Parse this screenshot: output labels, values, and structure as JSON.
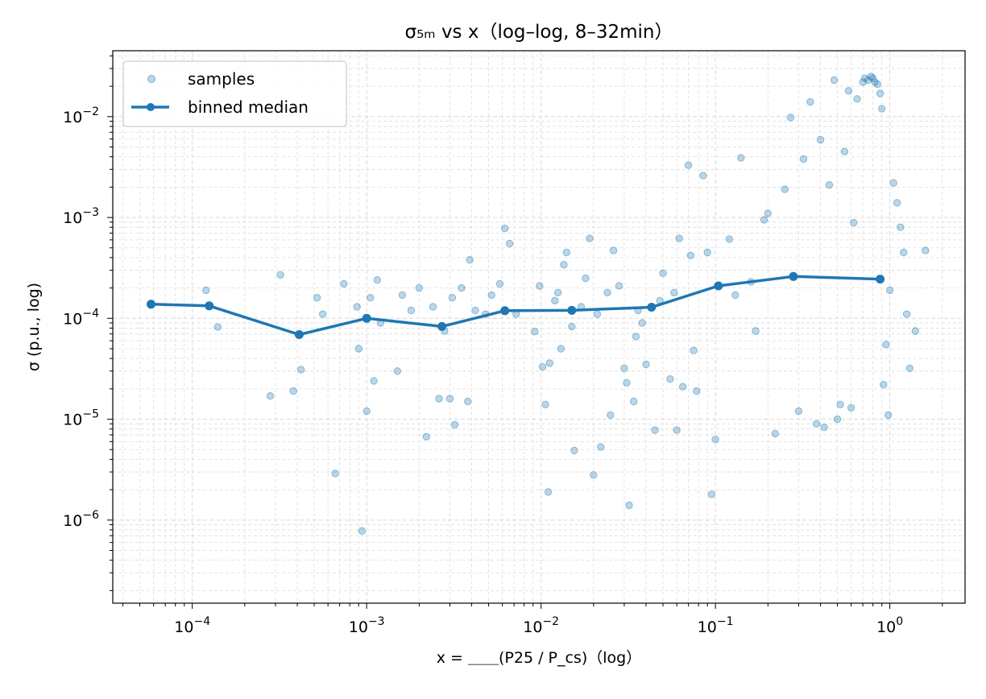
{
  "chart_data": {
    "type": "scatter",
    "title": "σ₅ₘ vs x（log–log, 8–32min）",
    "xlabel": "x = ＿＿(P25 / P_cs)（log）",
    "ylabel": "σ (p.u., log)",
    "xscale": "log",
    "yscale": "log",
    "xlim": [
      3.5e-05,
      2.7
    ],
    "ylim": [
      1.5e-07,
      0.045
    ],
    "grid": true,
    "legend_position": "top-left",
    "x_tick_labels": [
      "10−4",
      "10−3",
      "10−2",
      "10−1",
      "100"
    ],
    "y_tick_labels": [
      "10−6",
      "10−5",
      "10−4",
      "10−3",
      "10−2"
    ],
    "series": [
      {
        "name": "samples",
        "kind": "scatter",
        "color": "#1f77b4",
        "points": [
          [
            0.00012,
            0.00019
          ],
          [
            0.00014,
            8.2e-05
          ],
          [
            0.00028,
            1.7e-05
          ],
          [
            0.00032,
            0.00027
          ],
          [
            0.00038,
            1.9e-05
          ],
          [
            0.00042,
            3.1e-05
          ],
          [
            0.00052,
            0.00016
          ],
          [
            0.00056,
            0.00011
          ],
          [
            0.00066,
            2.9e-06
          ],
          [
            0.00074,
            0.00022
          ],
          [
            0.00088,
            0.00013
          ],
          [
            0.0009,
            5e-05
          ],
          [
            0.00094,
            7.8e-07
          ],
          [
            0.001,
            1.2e-05
          ],
          [
            0.00105,
            0.00016
          ],
          [
            0.0011,
            2.4e-05
          ],
          [
            0.00115,
            0.00024
          ],
          [
            0.0012,
            9e-05
          ],
          [
            0.0015,
            3e-05
          ],
          [
            0.0016,
            0.00017
          ],
          [
            0.0018,
            0.00012
          ],
          [
            0.002,
            0.0002
          ],
          [
            0.0022,
            6.7e-06
          ],
          [
            0.0024,
            0.00013
          ],
          [
            0.0026,
            1.6e-05
          ],
          [
            0.0028,
            7.5e-05
          ],
          [
            0.003,
            1.6e-05
          ],
          [
            0.0031,
            0.00016
          ],
          [
            0.0032,
            8.8e-06
          ],
          [
            0.0035,
            0.0002
          ],
          [
            0.0038,
            1.5e-05
          ],
          [
            0.0039,
            0.00038
          ],
          [
            0.0042,
            0.00012
          ],
          [
            0.0048,
            0.00011
          ],
          [
            0.0052,
            0.00017
          ],
          [
            0.0058,
            0.00022
          ],
          [
            0.0062,
            0.00078
          ],
          [
            0.0066,
            0.00055
          ],
          [
            0.0072,
            0.00011
          ],
          [
            0.0092,
            7.4e-05
          ],
          [
            0.0098,
            0.00021
          ],
          [
            0.0102,
            3.3e-05
          ],
          [
            0.0106,
            1.4e-05
          ],
          [
            0.011,
            1.9e-06
          ],
          [
            0.0112,
            3.6e-05
          ],
          [
            0.012,
            0.00015
          ],
          [
            0.0125,
            0.00018
          ],
          [
            0.013,
            5e-05
          ],
          [
            0.0135,
            0.00034
          ],
          [
            0.014,
            0.00045
          ],
          [
            0.015,
            8.3e-05
          ],
          [
            0.0155,
            4.9e-06
          ],
          [
            0.017,
            0.00013
          ],
          [
            0.018,
            0.00025
          ],
          [
            0.019,
            0.00062
          ],
          [
            0.02,
            2.8e-06
          ],
          [
            0.021,
            0.00011
          ],
          [
            0.022,
            5.3e-06
          ],
          [
            0.024,
            0.00018
          ],
          [
            0.025,
            1.1e-05
          ],
          [
            0.026,
            0.00047
          ],
          [
            0.028,
            0.00021
          ],
          [
            0.03,
            3.2e-05
          ],
          [
            0.031,
            2.3e-05
          ],
          [
            0.032,
            1.4e-06
          ],
          [
            0.034,
            1.5e-05
          ],
          [
            0.035,
            6.6e-05
          ],
          [
            0.036,
            0.00012
          ],
          [
            0.038,
            9e-05
          ],
          [
            0.04,
            3.5e-05
          ],
          [
            0.045,
            7.8e-06
          ],
          [
            0.048,
            0.00015
          ],
          [
            0.05,
            0.00028
          ],
          [
            0.055,
            2.5e-05
          ],
          [
            0.058,
            0.00018
          ],
          [
            0.06,
            7.8e-06
          ],
          [
            0.062,
            0.00062
          ],
          [
            0.065,
            2.1e-05
          ],
          [
            0.07,
            0.0033
          ],
          [
            0.072,
            0.00042
          ],
          [
            0.075,
            4.8e-05
          ],
          [
            0.078,
            1.9e-05
          ],
          [
            0.085,
            0.0026
          ],
          [
            0.09,
            0.00045
          ],
          [
            0.095,
            1.8e-06
          ],
          [
            0.1,
            6.3e-06
          ],
          [
            0.12,
            0.00061
          ],
          [
            0.13,
            0.00017
          ],
          [
            0.14,
            0.0039
          ],
          [
            0.16,
            0.00023
          ],
          [
            0.17,
            7.5e-05
          ],
          [
            0.19,
            0.00095
          ],
          [
            0.2,
            0.0011
          ],
          [
            0.22,
            7.2e-06
          ],
          [
            0.25,
            0.0019
          ],
          [
            0.27,
            0.0098
          ],
          [
            0.3,
            1.2e-05
          ],
          [
            0.32,
            0.0038
          ],
          [
            0.35,
            0.014
          ],
          [
            0.38,
            9e-06
          ],
          [
            0.4,
            0.0059
          ],
          [
            0.42,
            8.3e-06
          ],
          [
            0.45,
            0.0021
          ],
          [
            0.48,
            0.023
          ],
          [
            0.5,
            1e-05
          ],
          [
            0.52,
            1.4e-05
          ],
          [
            0.55,
            0.0045
          ],
          [
            0.58,
            0.018
          ],
          [
            0.6,
            1.3e-05
          ],
          [
            0.62,
            0.00089
          ],
          [
            0.65,
            0.015
          ],
          [
            0.7,
            0.022
          ],
          [
            0.72,
            0.024
          ],
          [
            0.75,
            0.023
          ],
          [
            0.78,
            0.025
          ],
          [
            0.8,
            0.024
          ],
          [
            0.82,
            0.022
          ],
          [
            0.85,
            0.021
          ],
          [
            0.88,
            0.017
          ],
          [
            0.9,
            0.012
          ],
          [
            0.92,
            2.2e-05
          ],
          [
            0.95,
            5.5e-05
          ],
          [
            0.98,
            1.1e-05
          ],
          [
            1.0,
            0.00019
          ],
          [
            1.05,
            0.0022
          ],
          [
            1.1,
            0.0014
          ],
          [
            1.15,
            0.0008
          ],
          [
            1.2,
            0.00045
          ],
          [
            1.25,
            0.00011
          ],
          [
            1.3,
            3.2e-05
          ],
          [
            1.4,
            7.5e-05
          ],
          [
            1.6,
            0.00047
          ]
        ]
      },
      {
        "name": "binned median",
        "kind": "line",
        "color": "#1f77b4",
        "x": [
          5.8e-05,
          0.000125,
          0.00041,
          0.001,
          0.0027,
          0.0062,
          0.015,
          0.043,
          0.104,
          0.28,
          0.88
        ],
        "y": [
          0.000138,
          0.000133,
          6.9e-05,
          0.0001,
          8.3e-05,
          0.000119,
          0.00012,
          0.000129,
          0.00021,
          0.00026,
          0.000245
        ]
      }
    ]
  }
}
